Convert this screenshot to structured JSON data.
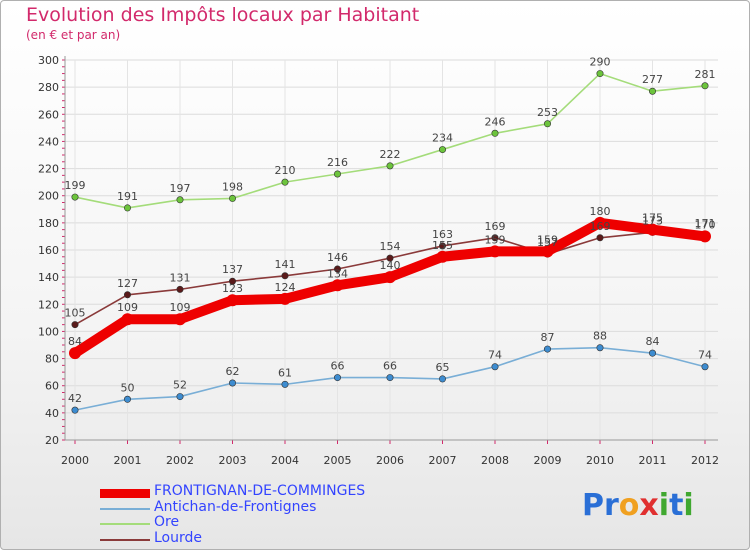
{
  "header": {
    "title": "Evolution des Impôts locaux par Habitant",
    "subtitle": "(en € et par an)"
  },
  "logo": {
    "text": "Proxiti",
    "letters": [
      {
        "ch": "P",
        "color": "#2a6fd6"
      },
      {
        "ch": "r",
        "color": "#2a6fd6"
      },
      {
        "ch": "o",
        "color": "#f0a020"
      },
      {
        "ch": "x",
        "color": "#e03030"
      },
      {
        "ch": "i",
        "color": "#40a830"
      },
      {
        "ch": "t",
        "color": "#2a6fd6"
      },
      {
        "ch": "i",
        "color": "#40a830"
      }
    ]
  },
  "chart_data": {
    "type": "line",
    "title": "Evolution des Impôts locaux par Habitant",
    "subtitle": "(en € et par an)",
    "xlabel": "",
    "ylabel": "",
    "ylim": [
      20,
      300
    ],
    "yticks": [
      20,
      40,
      60,
      80,
      100,
      120,
      140,
      160,
      180,
      200,
      220,
      240,
      260,
      280,
      300
    ],
    "grid": true,
    "legend_position": "bottom-left",
    "categories": [
      "2000",
      "2001",
      "2002",
      "2003",
      "2004",
      "2005",
      "2006",
      "2007",
      "2008",
      "2009",
      "2010",
      "2011",
      "2012"
    ],
    "series": [
      {
        "name": "FRONTIGNAN-DE-COMMINGES",
        "color": "#ee0000",
        "marker": "#ee0000",
        "legend_text_color": "#3344ff",
        "emphasis": true,
        "values": [
          84,
          109,
          109,
          123,
          124,
          134,
          140,
          155,
          159,
          159,
          180,
          175,
          170
        ]
      },
      {
        "name": "Antichan-de-Frontignes",
        "color": "#79aed6",
        "marker": "#3d8cd0",
        "legend_text_color": "#3344ff",
        "emphasis": false,
        "values": [
          42,
          50,
          52,
          62,
          61,
          66,
          66,
          65,
          74,
          87,
          88,
          84,
          74
        ]
      },
      {
        "name": "Ore",
        "color": "#a4dc7a",
        "marker": "#6cc43c",
        "legend_text_color": "#3344ff",
        "emphasis": false,
        "values": [
          199,
          191,
          197,
          198,
          210,
          216,
          222,
          234,
          246,
          253,
          290,
          277,
          281
        ]
      },
      {
        "name": "Lourde",
        "color": "#8a3a3a",
        "marker": "#5a1a1a",
        "legend_text_color": "#3344ff",
        "emphasis": false,
        "values": [
          105,
          127,
          131,
          137,
          141,
          146,
          154,
          163,
          169,
          157,
          169,
          173,
          171
        ]
      }
    ]
  }
}
